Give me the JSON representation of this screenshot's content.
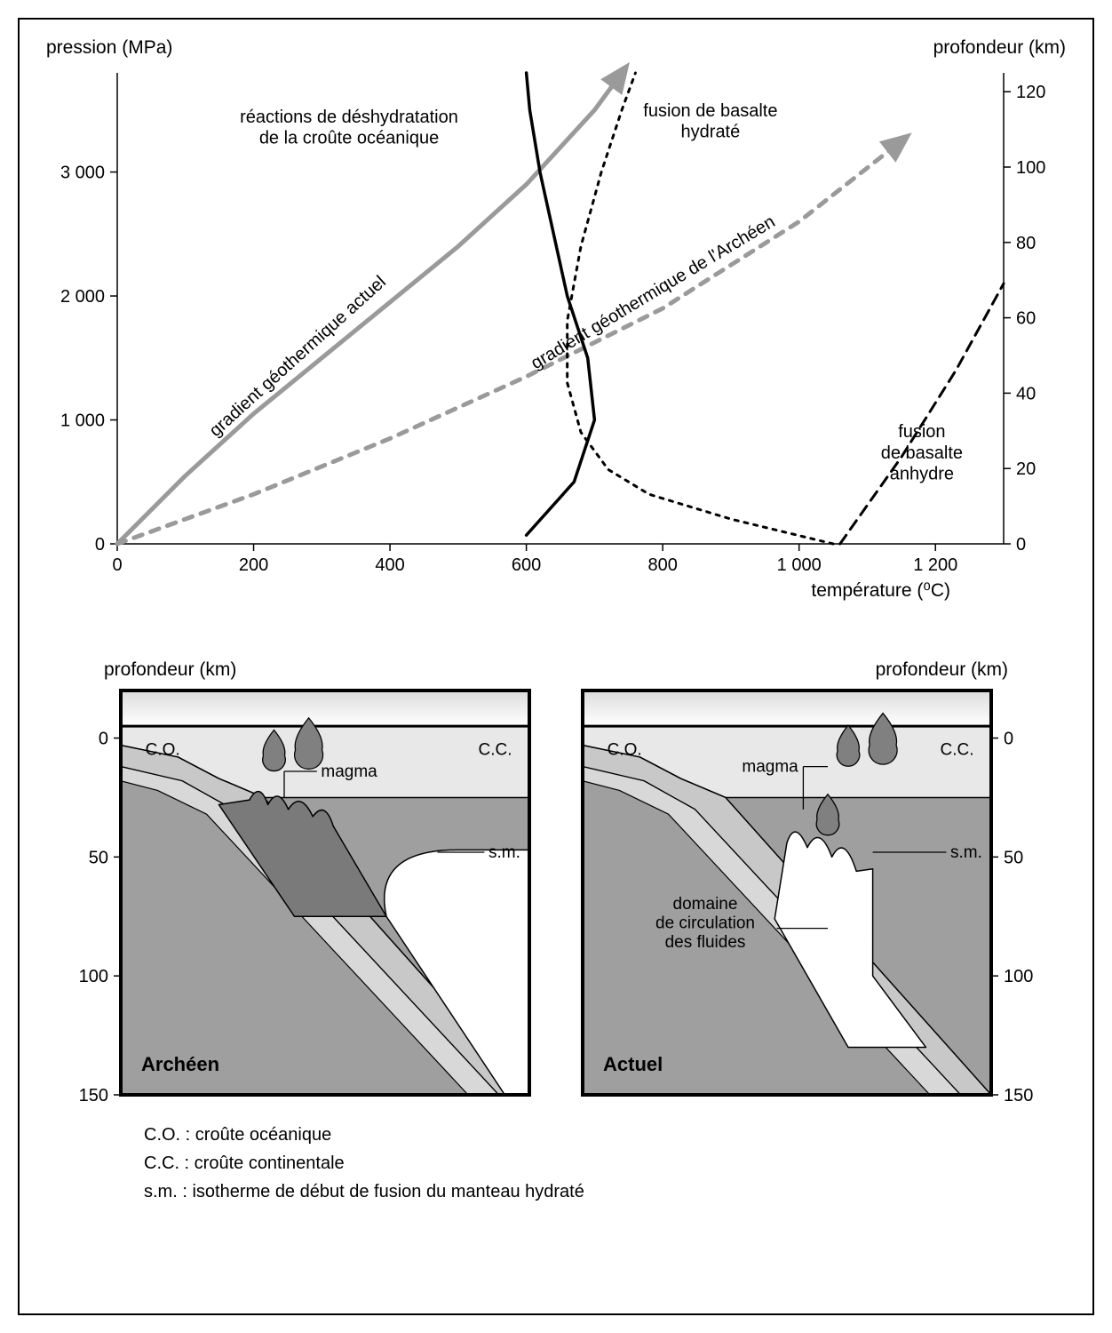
{
  "chart": {
    "type": "line",
    "left_axis_label": "pression (MPa)",
    "right_axis_label": "profondeur (km)",
    "x_axis_label": "température  (⁰C)",
    "xlim": [
      0,
      1300
    ],
    "ylim_left": [
      0,
      3800
    ],
    "ylim_right": [
      0,
      125
    ],
    "x_ticks": [
      0,
      200,
      400,
      600,
      800,
      1000,
      1200
    ],
    "x_tick_labels": [
      "0",
      "200",
      "400",
      "600",
      "800",
      "1 000",
      "1 200"
    ],
    "y_ticks_left": [
      0,
      1000,
      2000,
      3000
    ],
    "y_tick_labels_left": [
      "0",
      "1 000",
      "2 000",
      "3 000"
    ],
    "y_ticks_right": [
      0,
      20,
      40,
      60,
      80,
      100,
      120
    ],
    "y_tick_labels_right": [
      "0",
      "20",
      "40",
      "60",
      "80",
      "100",
      "120"
    ],
    "background_color": "#ffffff",
    "axis_color": "#000000",
    "tick_fontsize": 20,
    "label_fontsize": 21,
    "curves": {
      "gradient_actuel": {
        "label": "gradient géothermique actuel",
        "color": "#9a9a9a",
        "width": 5,
        "dash": "none",
        "arrow": true,
        "points": [
          [
            0,
            0
          ],
          [
            100,
            550
          ],
          [
            200,
            1050
          ],
          [
            300,
            1500
          ],
          [
            400,
            1950
          ],
          [
            500,
            2400
          ],
          [
            600,
            2900
          ],
          [
            700,
            3500
          ],
          [
            740,
            3800
          ]
        ]
      },
      "gradient_archean": {
        "label": "gradient géothermique de l'Archéen",
        "color": "#9a9a9a",
        "width": 5,
        "dash": "10,10",
        "arrow": true,
        "points": [
          [
            0,
            0
          ],
          [
            200,
            400
          ],
          [
            400,
            850
          ],
          [
            600,
            1350
          ],
          [
            800,
            1900
          ],
          [
            1000,
            2600
          ],
          [
            1150,
            3250
          ]
        ]
      },
      "dehydration": {
        "label_l1": "réactions de déshydratation",
        "label_l2": "de la croûte océanique",
        "color": "#000000",
        "width": 3.5,
        "dash": "none",
        "points": [
          [
            600,
            70
          ],
          [
            670,
            500
          ],
          [
            700,
            1000
          ],
          [
            690,
            1500
          ],
          [
            660,
            2000
          ],
          [
            640,
            2500
          ],
          [
            620,
            3000
          ],
          [
            605,
            3500
          ],
          [
            600,
            3800
          ]
        ]
      },
      "fusion_hydrate": {
        "label_l1": "fusion de basalte",
        "label_l2": "hydraté",
        "color": "#000000",
        "width": 3,
        "dash": "4,7",
        "points": [
          [
            1050,
            0
          ],
          [
            900,
            200
          ],
          [
            780,
            400
          ],
          [
            720,
            600
          ],
          [
            680,
            900
          ],
          [
            660,
            1300
          ],
          [
            660,
            1800
          ],
          [
            680,
            2400
          ],
          [
            710,
            3000
          ],
          [
            740,
            3500
          ],
          [
            760,
            3800
          ]
        ]
      },
      "fusion_anhydre": {
        "label_l1": "fusion",
        "label_l2": "de basalte",
        "label_l3": "anhydre",
        "color": "#000000",
        "width": 3,
        "dash": "12,8",
        "points": [
          [
            1060,
            0
          ],
          [
            1150,
            700
          ],
          [
            1230,
            1400
          ],
          [
            1300,
            2100
          ]
        ]
      }
    }
  },
  "panels": {
    "left_axis_label": "profondeur (km)",
    "right_axis_label": "profondeur (km)",
    "y_ticks": [
      0,
      50,
      100,
      150
    ],
    "y_tick_labels": [
      "0",
      "50",
      "100",
      "150"
    ],
    "colors": {
      "sky": "#f4f4f4",
      "cc": "#e8e8e8",
      "mantle": "#9f9f9f",
      "slab_light": "#c8c8c8",
      "slab_lighter": "#d8d8d8",
      "melt_zone": "#7a7a7a",
      "white_zone": "#ffffff",
      "border": "#000000",
      "magma_drop": "#808080"
    },
    "archean": {
      "title": "Archéen",
      "co_label": "C.O.",
      "cc_label": "C.C.",
      "magma_label": "magma",
      "sm_label": "s.m."
    },
    "actuel": {
      "title": "Actuel",
      "co_label": "C.O.",
      "cc_label": "C.C.",
      "magma_label": "magma",
      "sm_label": "s.m.",
      "fluids_l1": "domaine",
      "fluids_l2": "de circulation",
      "fluids_l3": "des fluides"
    },
    "legend": {
      "co": "C.O. : croûte océanique",
      "cc": "C.C. : croûte continentale",
      "sm": "s.m. : isotherme de début de fusion du manteau hydraté"
    }
  }
}
